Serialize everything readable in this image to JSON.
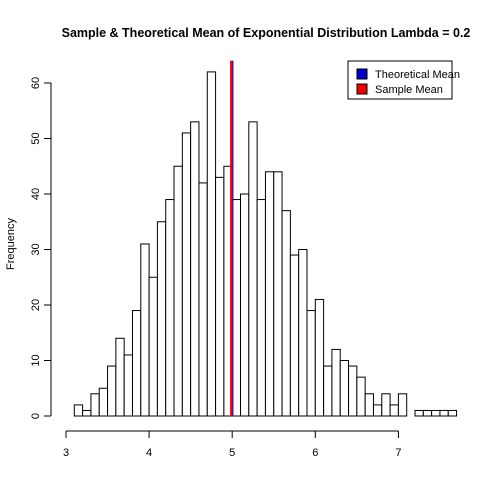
{
  "chart_data": {
    "type": "bar",
    "title": "Sample & Theoretical Mean of Exponential Distribution Lambda = 0.2",
    "xlabel": "",
    "ylabel": "Frequency",
    "xlim": [
      3.1,
      7.7
    ],
    "ylim": [
      0,
      64
    ],
    "x_ticks": [
      3,
      4,
      5,
      6,
      7
    ],
    "y_ticks": [
      0,
      10,
      20,
      30,
      40,
      50,
      60
    ],
    "bin_width": 0.1,
    "bins_start": [
      3.1,
      3.2,
      3.3,
      3.4,
      3.5,
      3.6,
      3.7,
      3.8,
      3.9,
      4.0,
      4.1,
      4.2,
      4.3,
      4.4,
      4.5,
      4.6,
      4.7,
      4.8,
      4.9,
      5.0,
      5.1,
      5.2,
      5.3,
      5.4,
      5.5,
      5.6,
      5.7,
      5.8,
      5.9,
      6.0,
      6.1,
      6.2,
      6.3,
      6.4,
      6.5,
      6.6,
      6.7,
      6.8,
      6.9,
      7.0,
      7.1,
      7.2,
      7.3,
      7.4,
      7.5,
      7.6
    ],
    "values": [
      2,
      1,
      4,
      5,
      9,
      14,
      11,
      19,
      31,
      25,
      35,
      39,
      45,
      51,
      53,
      42,
      62,
      43,
      45,
      39,
      40,
      53,
      39,
      44,
      44,
      37,
      29,
      30,
      19,
      21,
      9,
      12,
      10,
      9,
      7,
      4,
      2,
      4,
      2,
      4,
      0,
      1,
      1,
      1,
      1,
      1
    ],
    "bar_fill": "#ffffff",
    "bar_stroke": "#000000",
    "vlines": [
      {
        "name": "Theoretical Mean",
        "x": 5.0,
        "color": "#0000ff"
      },
      {
        "name": "Sample Mean",
        "x": 4.99,
        "color": "#ee0000"
      }
    ],
    "legend": {
      "position": "top-right",
      "entries": [
        {
          "label": "Theoretical Mean",
          "color": "#0000cc"
        },
        {
          "label": "Sample Mean",
          "color": "#ee0000"
        }
      ]
    },
    "grid": false
  }
}
